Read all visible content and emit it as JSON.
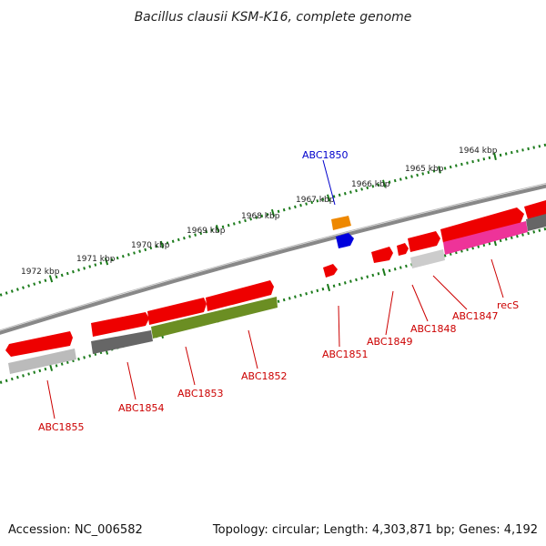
{
  "title": "Bacillus clausii KSM-K16, complete genome",
  "footer": {
    "accession": "Accession: NC_006582",
    "summary": "Topology: circular; Length: 4,303,871 bp; Genes: 4,192"
  },
  "ruler_ticks": [
    "1972 kbp",
    "1971 kbp",
    "1970 kbp",
    "1969 kbp",
    "1968 kbp",
    "1967 kbp",
    "1966 kbp",
    "1965 kbp",
    "1964 kbp"
  ],
  "gene_labels": [
    {
      "text": "ABC1850",
      "color": "#0000cc"
    },
    {
      "text": "ABC1851",
      "color": "#cc0000"
    },
    {
      "text": "ABC1849",
      "color": "#cc0000"
    },
    {
      "text": "ABC1848",
      "color": "#cc0000"
    },
    {
      "text": "ABC1847",
      "color": "#cc0000"
    },
    {
      "text": "recS",
      "color": "#cc0000"
    },
    {
      "text": "ABC1852",
      "color": "#cc0000"
    },
    {
      "text": "ABC1853",
      "color": "#cc0000"
    },
    {
      "text": "ABC1854",
      "color": "#cc0000"
    },
    {
      "text": "ABC1855",
      "color": "#cc0000"
    }
  ],
  "colors": {
    "gene_forward": "#ee0000",
    "gene_reverse": "#ee0000",
    "ruler": "#1a7a1a",
    "backbone": "#888888",
    "gene_orange": "#ee8800",
    "gene_blue": "#0000dd",
    "cds_gray": "#666666",
    "cds_lightgray": "#bbbbbb",
    "cds_green": "#6b8e23",
    "cds_pink": "#ee3399"
  }
}
